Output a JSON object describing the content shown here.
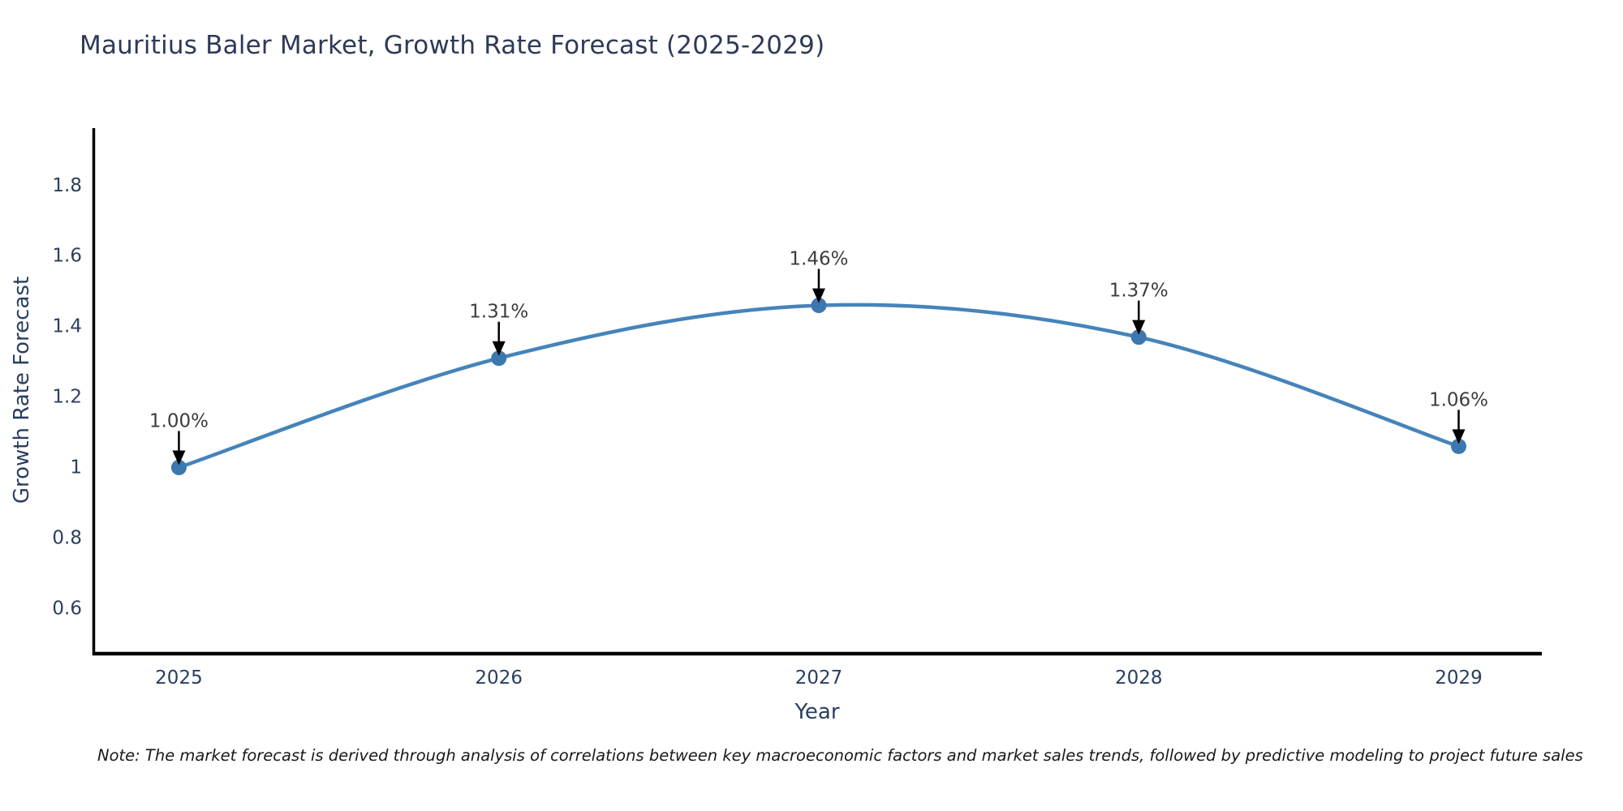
{
  "header": {
    "title": "Mauritius Baler Market, Growth Rate Forecast (2025-2029)"
  },
  "footer": {
    "note": "Note: The market forecast is derived through analysis of correlations between key macroeconomic factors and market sales trends, followed by predictive modeling to project future sales"
  },
  "chart_data": {
    "type": "line",
    "title": "Mauritius Baler Market, Growth Rate Forecast (2025-2029)",
    "xlabel": "Year",
    "ylabel": "Growth Rate Forecast",
    "x": [
      2025,
      2026,
      2027,
      2028,
      2029
    ],
    "values": [
      1.0,
      1.31,
      1.46,
      1.37,
      1.06
    ],
    "point_labels": [
      "1.00%",
      "1.31%",
      "1.46%",
      "1.37%",
      "1.06%"
    ],
    "x_tick_labels": [
      "2025",
      "2026",
      "2027",
      "2028",
      "2029"
    ],
    "y_ticks": [
      1.8,
      1.6,
      1.4,
      1.2,
      1,
      0.8,
      0.6
    ],
    "y_tick_labels": [
      "1.8",
      "1.6",
      "1.4",
      "1.2",
      "1",
      "0.8",
      "0.6"
    ],
    "xlim": [
      2024.73,
      2029.26
    ],
    "ylim": [
      0.474,
      1.963
    ],
    "grid": false,
    "legend": null,
    "line_shape": "spline",
    "colors": {
      "line": "#4584ba",
      "marker": "#3c78af",
      "axis": "#000000",
      "annotation_arrow": "#000000",
      "annotation_text": "#3d3d3d",
      "tick_text": "#2a3f5f",
      "title_text": "#2e3a59"
    }
  }
}
